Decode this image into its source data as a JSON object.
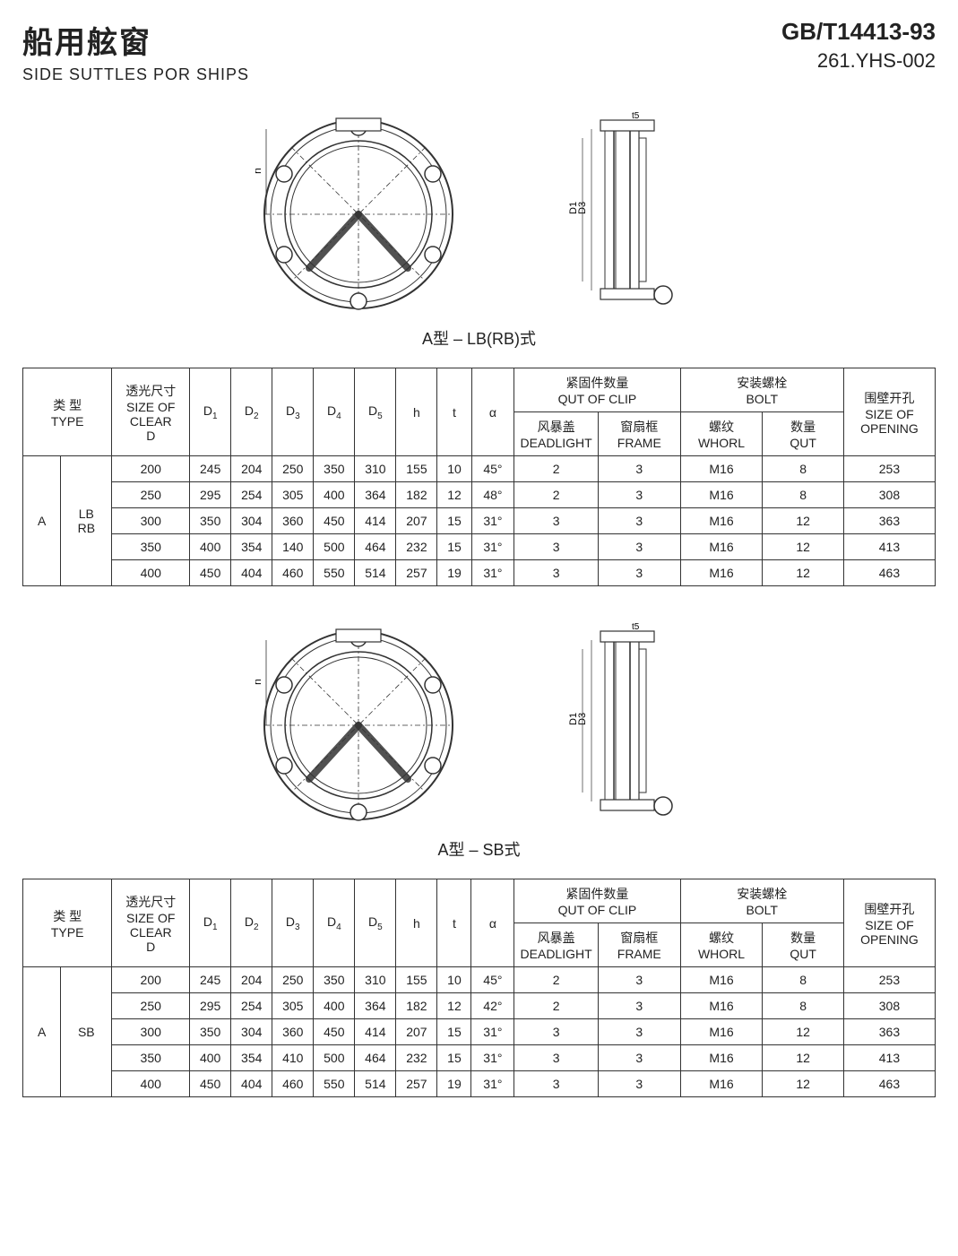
{
  "header": {
    "title_cn": "船用舷窗",
    "title_en": "SIDE SUTTLES POR SHIPS",
    "standard": "GB/T14413-93",
    "code": "261.YHS-002"
  },
  "sections": [
    {
      "label": "A型 – LB(RB)式"
    },
    {
      "label": "A型 – SB式"
    }
  ],
  "table_headers": {
    "type_cn": "类 型",
    "type_en": "TYPE",
    "clear_cn": "透光尺寸",
    "clear_en1": "SIZE OF",
    "clear_en2": "CLEAR",
    "clear_d": "D",
    "d1": "D1",
    "d2": "D2",
    "d3": "D3",
    "d4": "D4",
    "d5": "D5",
    "h": "h",
    "t": "t",
    "alpha": "α",
    "clip_cn": "紧固件数量",
    "clip_en": "QUT OF CLIP",
    "deadlight_cn": "风暴盖",
    "deadlight_en": "DEADLIGHT",
    "frame_cn": "窗扇框",
    "frame_en": "FRAME",
    "bolt_cn": "安装螺栓",
    "bolt_en": "BOLT",
    "whorl_cn": "螺纹",
    "whorl_en": "WHORL",
    "qut_cn": "数量",
    "qut_en": "QUT",
    "opening_cn": "围壁开孔",
    "opening_en1": "SIZE OF",
    "opening_en2": "OPENING"
  },
  "table1": {
    "type_main": "A",
    "type_sub": "LB\nRB",
    "rows": [
      {
        "clear": "200",
        "d1": "245",
        "d2": "204",
        "d3": "250",
        "d4": "350",
        "d5": "310",
        "h": "155",
        "t": "10",
        "a": "45°",
        "dl": "2",
        "fr": "3",
        "wh": "M16",
        "qu": "8",
        "op": "253"
      },
      {
        "clear": "250",
        "d1": "295",
        "d2": "254",
        "d3": "305",
        "d4": "400",
        "d5": "364",
        "h": "182",
        "t": "12",
        "a": "48°",
        "dl": "2",
        "fr": "3",
        "wh": "M16",
        "qu": "8",
        "op": "308"
      },
      {
        "clear": "300",
        "d1": "350",
        "d2": "304",
        "d3": "360",
        "d4": "450",
        "d5": "414",
        "h": "207",
        "t": "15",
        "a": "31°",
        "dl": "3",
        "fr": "3",
        "wh": "M16",
        "qu": "12",
        "op": "363"
      },
      {
        "clear": "350",
        "d1": "400",
        "d2": "354",
        "d3": "140",
        "d4": "500",
        "d5": "464",
        "h": "232",
        "t": "15",
        "a": "31°",
        "dl": "3",
        "fr": "3",
        "wh": "M16",
        "qu": "12",
        "op": "413"
      },
      {
        "clear": "400",
        "d1": "450",
        "d2": "404",
        "d3": "460",
        "d4": "550",
        "d5": "514",
        "h": "257",
        "t": "19",
        "a": "31°",
        "dl": "3",
        "fr": "3",
        "wh": "M16",
        "qu": "12",
        "op": "463"
      }
    ]
  },
  "table2": {
    "type_main": "A",
    "type_sub": "SB",
    "rows": [
      {
        "clear": "200",
        "d1": "245",
        "d2": "204",
        "d3": "250",
        "d4": "350",
        "d5": "310",
        "h": "155",
        "t": "10",
        "a": "45°",
        "dl": "2",
        "fr": "3",
        "wh": "M16",
        "qu": "8",
        "op": "253"
      },
      {
        "clear": "250",
        "d1": "295",
        "d2": "254",
        "d3": "305",
        "d4": "400",
        "d5": "364",
        "h": "182",
        "t": "12",
        "a": "42°",
        "dl": "2",
        "fr": "3",
        "wh": "M16",
        "qu": "8",
        "op": "308"
      },
      {
        "clear": "300",
        "d1": "350",
        "d2": "304",
        "d3": "360",
        "d4": "450",
        "d5": "414",
        "h": "207",
        "t": "15",
        "a": "31°",
        "dl": "3",
        "fr": "3",
        "wh": "M16",
        "qu": "12",
        "op": "363"
      },
      {
        "clear": "350",
        "d1": "400",
        "d2": "354",
        "d3": "410",
        "d4": "500",
        "d5": "464",
        "h": "232",
        "t": "15",
        "a": "31°",
        "dl": "3",
        "fr": "3",
        "wh": "M16",
        "qu": "12",
        "op": "413"
      },
      {
        "clear": "400",
        "d1": "450",
        "d2": "404",
        "d3": "460",
        "d4": "550",
        "d5": "514",
        "h": "257",
        "t": "19",
        "a": "31°",
        "dl": "3",
        "fr": "3",
        "wh": "M16",
        "qu": "12",
        "op": "463"
      }
    ]
  },
  "drawing": {
    "stroke": "#333333",
    "fill": "#ffffff"
  }
}
